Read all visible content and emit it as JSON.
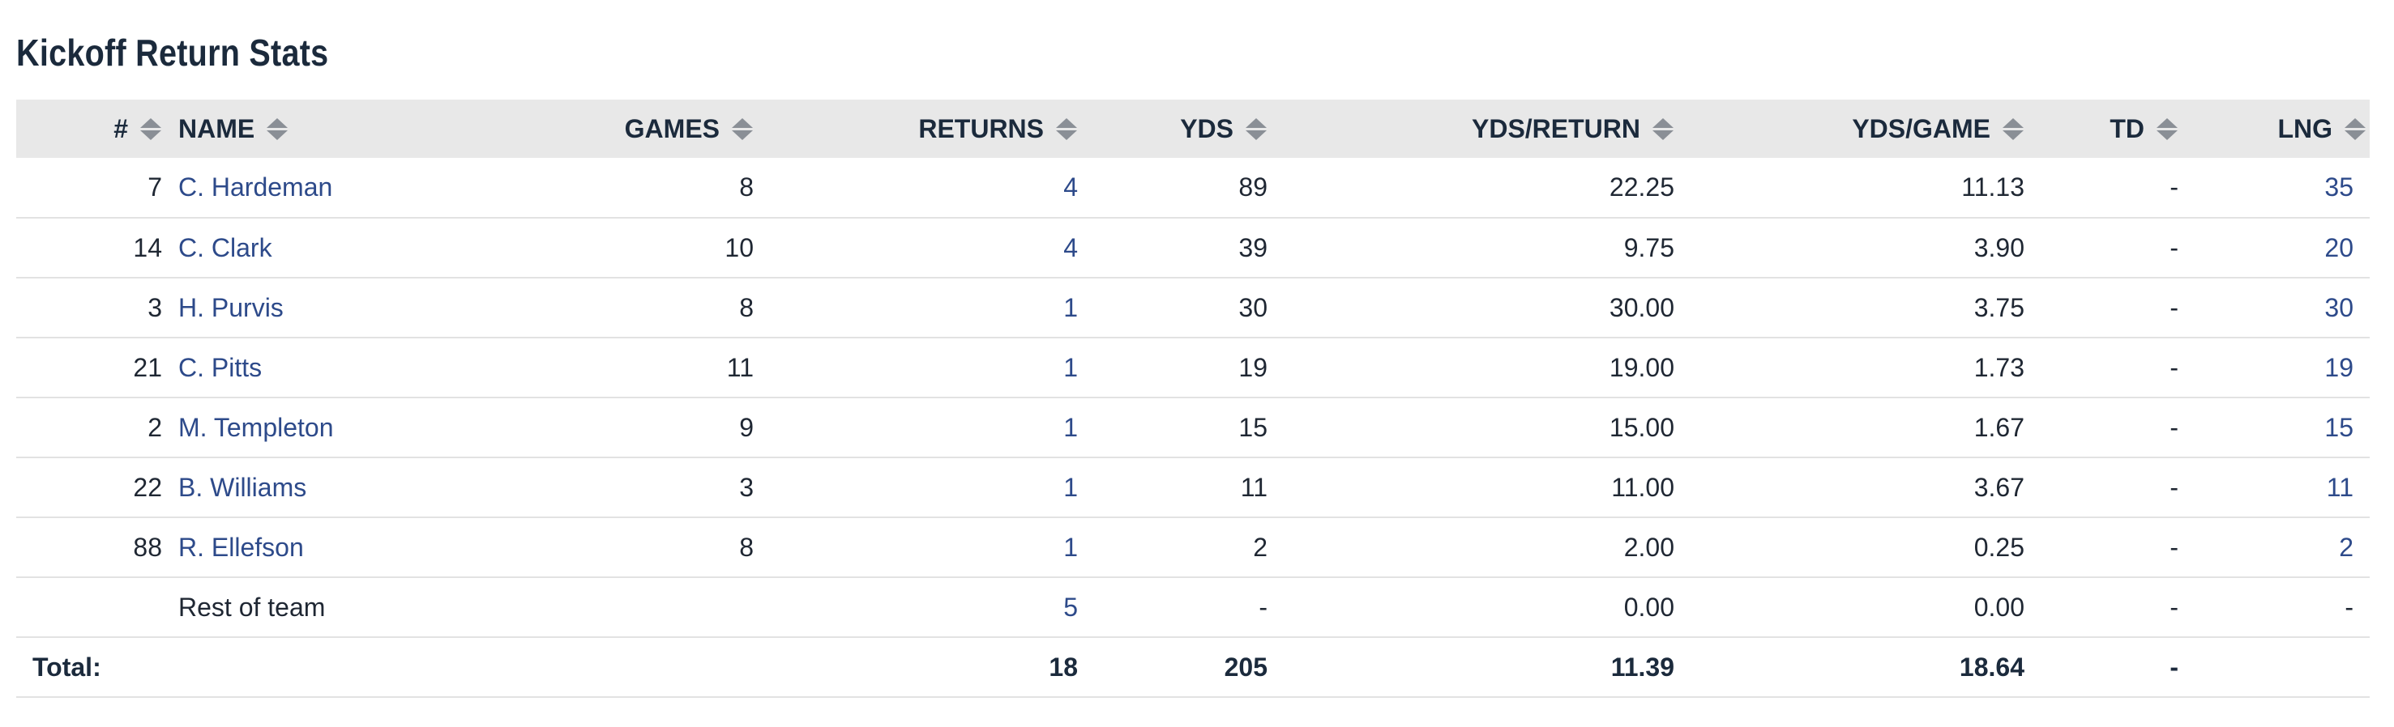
{
  "title": "Kickoff Return Stats",
  "columns": [
    "#",
    "NAME",
    "GAMES",
    "RETURNS",
    "YDS",
    "YDS/RETURN",
    "YDS/GAME",
    "TD",
    "LNG"
  ],
  "rows": [
    {
      "num": "7",
      "name": "C. Hardeman",
      "games": "8",
      "returns": "4",
      "yds": "89",
      "ypr": "22.25",
      "ypg": "11.13",
      "td": "-",
      "lng": "35"
    },
    {
      "num": "14",
      "name": "C. Clark",
      "games": "10",
      "returns": "4",
      "yds": "39",
      "ypr": "9.75",
      "ypg": "3.90",
      "td": "-",
      "lng": "20"
    },
    {
      "num": "3",
      "name": "H. Purvis",
      "games": "8",
      "returns": "1",
      "yds": "30",
      "ypr": "30.00",
      "ypg": "3.75",
      "td": "-",
      "lng": "30"
    },
    {
      "num": "21",
      "name": "C. Pitts",
      "games": "11",
      "returns": "1",
      "yds": "19",
      "ypr": "19.00",
      "ypg": "1.73",
      "td": "-",
      "lng": "19"
    },
    {
      "num": "2",
      "name": "M. Templeton",
      "games": "9",
      "returns": "1",
      "yds": "15",
      "ypr": "15.00",
      "ypg": "1.67",
      "td": "-",
      "lng": "15"
    },
    {
      "num": "22",
      "name": "B. Williams",
      "games": "3",
      "returns": "1",
      "yds": "11",
      "ypr": "11.00",
      "ypg": "3.67",
      "td": "-",
      "lng": "11"
    },
    {
      "num": "88",
      "name": "R. Ellefson",
      "games": "8",
      "returns": "1",
      "yds": "2",
      "ypr": "2.00",
      "ypg": "0.25",
      "td": "-",
      "lng": "2"
    }
  ],
  "rest": {
    "name": "Rest of team",
    "returns": "5",
    "yds": "-",
    "ypr": "0.00",
    "ypg": "0.00",
    "td": "-",
    "lng": "-"
  },
  "total": {
    "label": "Total:",
    "returns": "18",
    "yds": "205",
    "ypr": "11.39",
    "ypg": "18.64",
    "td": "-"
  },
  "colors": {
    "link": "#2d4a8a",
    "header_bg": "#e8e8e8",
    "text": "#1f2733"
  },
  "icons": {
    "sort": "sort-arrows-icon"
  }
}
